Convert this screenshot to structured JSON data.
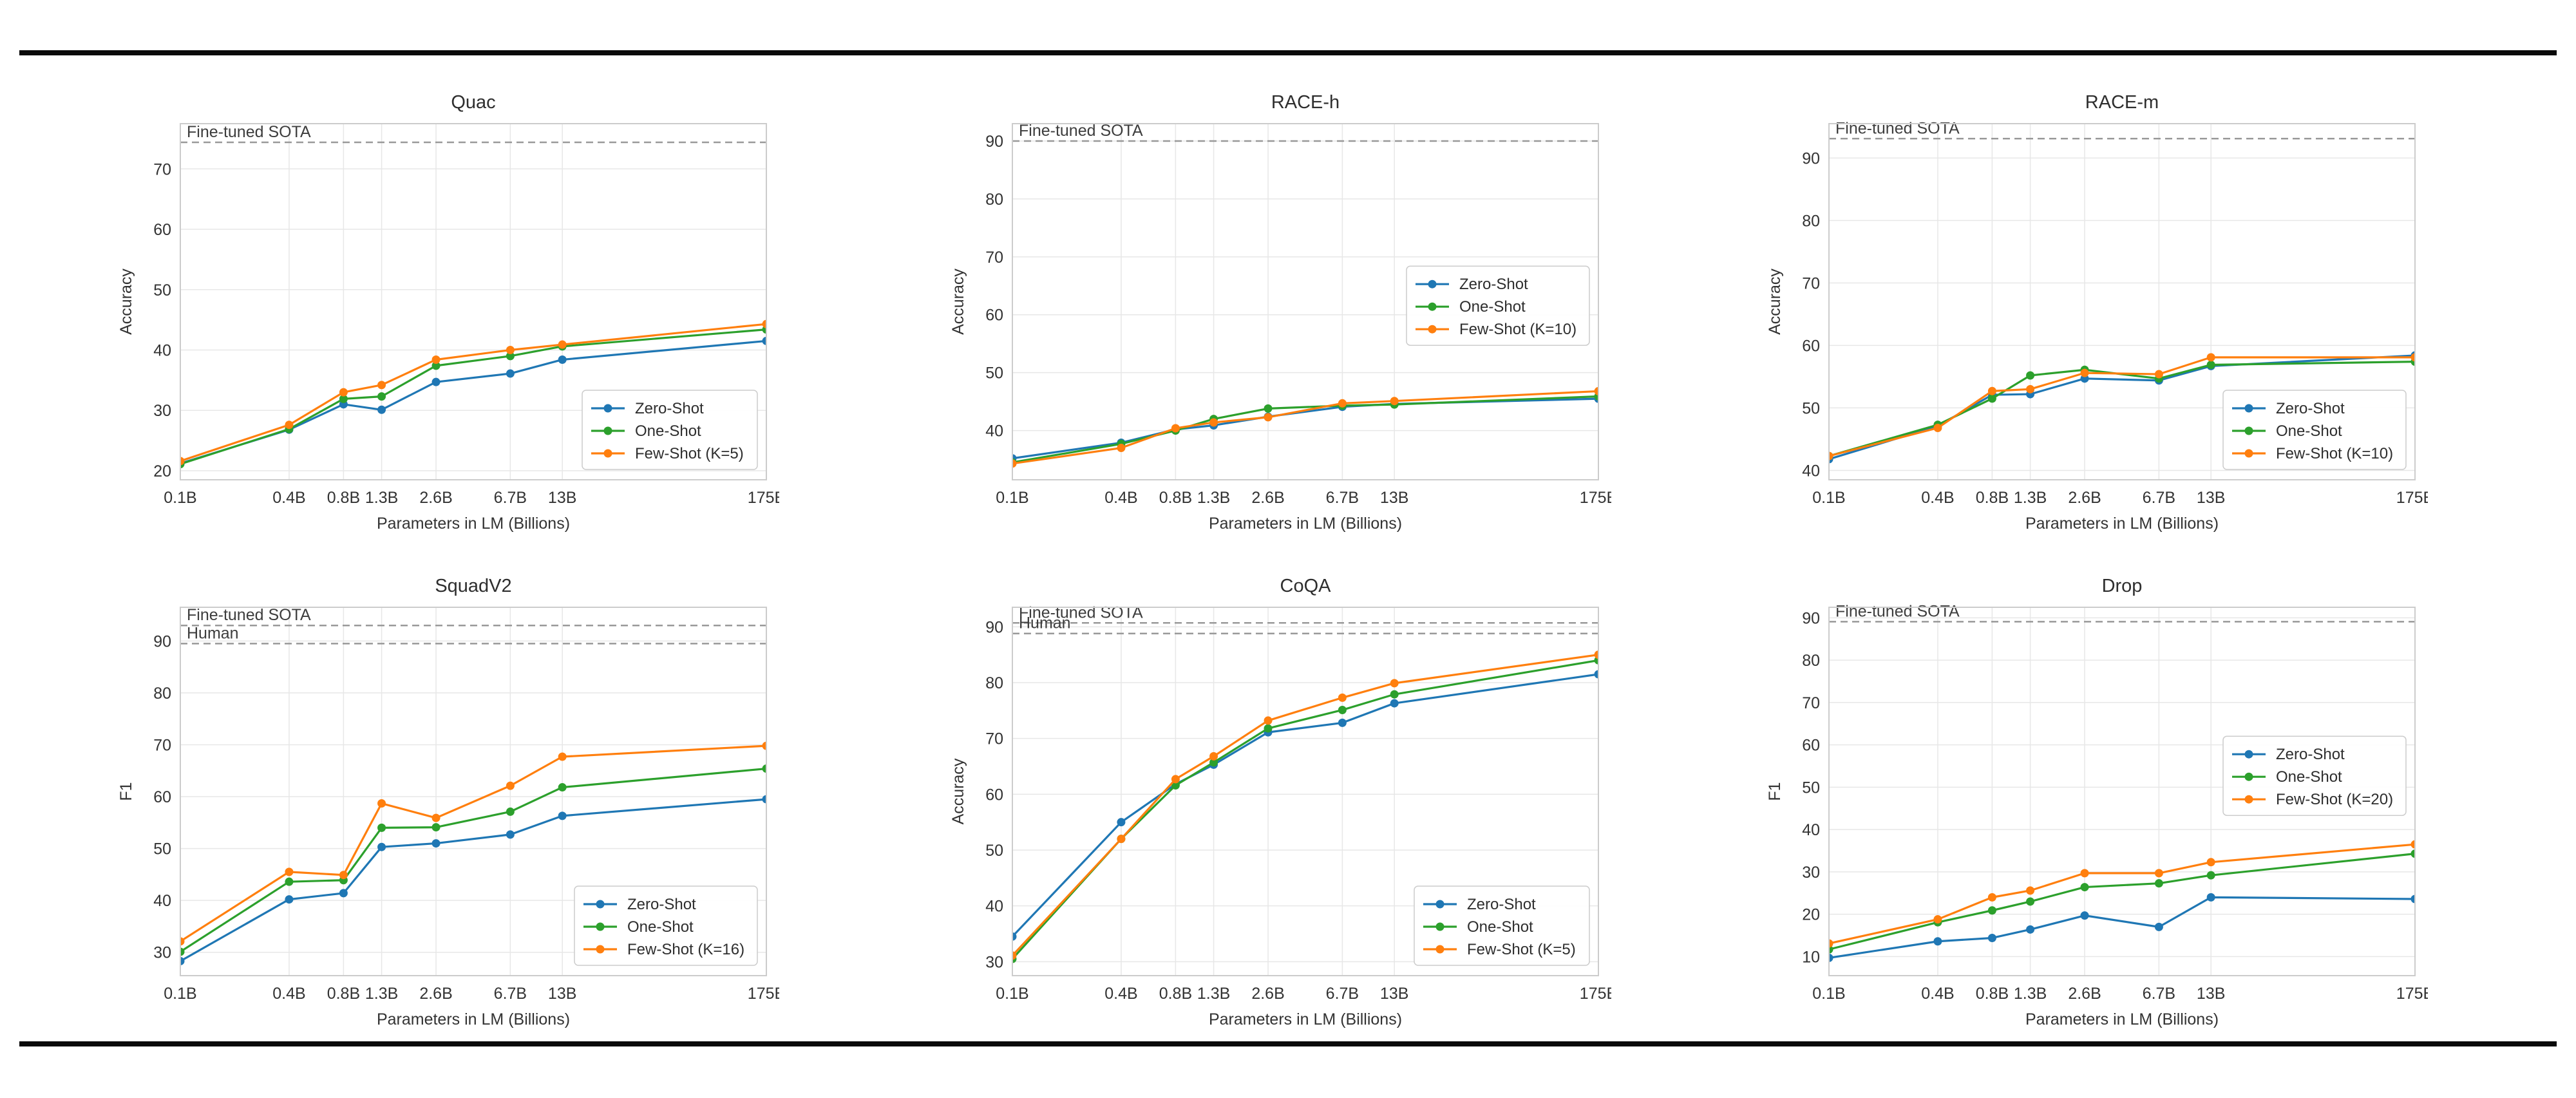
{
  "figure": {
    "x_axis_label": "Parameters in LM (Billions)",
    "x_tick_labels": [
      "0.1B",
      "0.4B",
      "0.8B",
      "1.3B",
      "2.6B",
      "6.7B",
      "13B",
      "175B"
    ],
    "x_values": [
      0.1,
      0.4,
      0.8,
      1.3,
      2.6,
      6.7,
      13,
      175
    ],
    "colors": {
      "zero_shot": "#1f77b4",
      "one_shot": "#2ca02c",
      "few_shot": "#ff7f0e",
      "reference_line": "#999999",
      "grid": "#e7e7e7",
      "spine": "#cccccc",
      "rule": "#0a0a0a"
    }
  },
  "chart_data": [
    {
      "type": "line",
      "title": "Quac",
      "xlabel": "Parameters in LM (Billions)",
      "ylabel": "Accuracy",
      "x_scale": "log",
      "x": [
        0.1,
        0.4,
        0.8,
        1.3,
        2.6,
        6.7,
        13,
        175
      ],
      "x_categories": [
        "0.1B",
        "0.4B",
        "0.8B",
        "1.3B",
        "2.6B",
        "6.7B",
        "13B",
        "175B"
      ],
      "ylim": [
        18.5,
        77.5
      ],
      "yticks": [
        20,
        30,
        40,
        50,
        60,
        70
      ],
      "grid": true,
      "reference_lines": [
        {
          "label": "Fine-tuned SOTA",
          "value": 74.4
        }
      ],
      "series": [
        {
          "name": "Zero-Shot",
          "color": "#1f77b4",
          "values": [
            21.2,
            26.8,
            31.0,
            30.1,
            34.7,
            36.1,
            38.4,
            41.5
          ]
        },
        {
          "name": "One-Shot",
          "color": "#2ca02c",
          "values": [
            21.1,
            26.9,
            31.9,
            32.3,
            37.4,
            39.0,
            40.6,
            43.4
          ]
        },
        {
          "name": "Few-Shot (K=5)",
          "color": "#ff7f0e",
          "values": [
            21.6,
            27.6,
            33.0,
            34.2,
            38.4,
            40.0,
            40.9,
            44.3
          ]
        }
      ],
      "legend": {
        "position": "lower-right"
      }
    },
    {
      "type": "line",
      "title": "RACE-h",
      "xlabel": "Parameters in LM (Billions)",
      "ylabel": "Accuracy",
      "x_scale": "log",
      "x": [
        0.1,
        0.4,
        0.8,
        1.3,
        2.6,
        6.7,
        13,
        175
      ],
      "x_categories": [
        "0.1B",
        "0.4B",
        "0.8B",
        "1.3B",
        "2.6B",
        "6.7B",
        "13B",
        "175B"
      ],
      "ylim": [
        31.5,
        93.0
      ],
      "yticks": [
        40,
        50,
        60,
        70,
        80,
        90
      ],
      "grid": true,
      "reference_lines": [
        {
          "label": "Fine-tuned SOTA",
          "value": 90.0
        }
      ],
      "series": [
        {
          "name": "Zero-Shot",
          "color": "#1f77b4",
          "values": [
            35.2,
            37.9,
            40.2,
            40.9,
            42.4,
            44.1,
            44.6,
            45.5
          ]
        },
        {
          "name": "One-Shot",
          "color": "#2ca02c",
          "values": [
            34.5,
            37.7,
            40.0,
            42.0,
            43.8,
            44.3,
            44.5,
            45.9
          ]
        },
        {
          "name": "Few-Shot (K=10)",
          "color": "#ff7f0e",
          "values": [
            34.3,
            37.0,
            40.4,
            41.4,
            42.3,
            44.7,
            45.1,
            46.8
          ]
        }
      ],
      "legend": {
        "position": "center-right",
        "y_fraction": 0.4
      }
    },
    {
      "type": "line",
      "title": "RACE-m",
      "xlabel": "Parameters in LM (Billions)",
      "ylabel": "Accuracy",
      "x_scale": "log",
      "x": [
        0.1,
        0.4,
        0.8,
        1.3,
        2.6,
        6.7,
        13,
        175
      ],
      "x_categories": [
        "0.1B",
        "0.4B",
        "0.8B",
        "1.3B",
        "2.6B",
        "6.7B",
        "13B",
        "175B"
      ],
      "ylim": [
        38.5,
        95.5
      ],
      "yticks": [
        40,
        50,
        60,
        70,
        80,
        90
      ],
      "grid": true,
      "reference_lines": [
        {
          "label": "Fine-tuned SOTA",
          "value": 93.1
        }
      ],
      "series": [
        {
          "name": "Zero-Shot",
          "color": "#1f77b4",
          "values": [
            41.8,
            47.1,
            52.1,
            52.2,
            54.7,
            54.4,
            56.7,
            58.4
          ]
        },
        {
          "name": "One-Shot",
          "color": "#2ca02c",
          "values": [
            42.3,
            47.3,
            51.5,
            55.2,
            56.1,
            54.7,
            56.9,
            57.4
          ]
        },
        {
          "name": "Few-Shot (K=10)",
          "color": "#ff7f0e",
          "values": [
            42.3,
            46.8,
            52.7,
            53.0,
            55.6,
            55.4,
            58.1,
            58.1
          ]
        }
      ],
      "legend": {
        "position": "lower-right"
      }
    },
    {
      "type": "line",
      "title": "SquadV2",
      "xlabel": "Parameters in LM (Billions)",
      "ylabel": "F1",
      "x_scale": "log",
      "x": [
        0.1,
        0.4,
        0.8,
        1.3,
        2.6,
        6.7,
        13,
        175
      ],
      "x_categories": [
        "0.1B",
        "0.4B",
        "0.8B",
        "1.3B",
        "2.6B",
        "6.7B",
        "13B",
        "175B"
      ],
      "ylim": [
        25.5,
        96.5
      ],
      "yticks": [
        30,
        40,
        50,
        60,
        70,
        80,
        90
      ],
      "grid": true,
      "reference_lines": [
        {
          "label": "Fine-tuned SOTA",
          "value": 93.0
        },
        {
          "label": "Human",
          "value": 89.5
        }
      ],
      "series": [
        {
          "name": "Zero-Shot",
          "color": "#1f77b4",
          "values": [
            28.3,
            40.2,
            41.4,
            50.3,
            51.0,
            52.7,
            56.3,
            59.5
          ]
        },
        {
          "name": "One-Shot",
          "color": "#2ca02c",
          "values": [
            30.1,
            43.6,
            43.9,
            54.0,
            54.1,
            57.1,
            61.8,
            65.4
          ]
        },
        {
          "name": "Few-Shot (K=16)",
          "color": "#ff7f0e",
          "values": [
            32.1,
            45.5,
            44.9,
            58.7,
            55.9,
            62.1,
            67.7,
            69.8
          ]
        }
      ],
      "legend": {
        "position": "lower-right"
      }
    },
    {
      "type": "line",
      "title": "CoQA",
      "xlabel": "Parameters in LM (Billions)",
      "ylabel": "Accuracy",
      "x_scale": "log",
      "x": [
        0.1,
        0.4,
        0.8,
        1.3,
        2.6,
        6.7,
        13,
        175
      ],
      "x_categories": [
        "0.1B",
        "0.4B",
        "0.8B",
        "1.3B",
        "2.6B",
        "6.7B",
        "13B",
        "175B"
      ],
      "ylim": [
        27.5,
        93.5
      ],
      "yticks": [
        30,
        40,
        50,
        60,
        70,
        80,
        90
      ],
      "grid": true,
      "reference_lines": [
        {
          "label": "Fine-tuned SOTA",
          "value": 90.7
        },
        {
          "label": "Human",
          "value": 88.8
        }
      ],
      "series": [
        {
          "name": "Zero-Shot",
          "color": "#1f77b4",
          "values": [
            34.5,
            55.0,
            61.8,
            65.3,
            71.1,
            72.8,
            76.3,
            81.5
          ]
        },
        {
          "name": "One-Shot",
          "color": "#2ca02c",
          "values": [
            30.5,
            52.0,
            61.6,
            65.7,
            71.8,
            75.1,
            77.9,
            84.0
          ]
        },
        {
          "name": "Few-Shot (K=5)",
          "color": "#ff7f0e",
          "values": [
            31.1,
            52.0,
            62.7,
            66.8,
            73.2,
            77.3,
            79.9,
            85.0
          ]
        }
      ],
      "legend": {
        "position": "lower-right"
      }
    },
    {
      "type": "line",
      "title": "Drop",
      "xlabel": "Parameters in LM (Billions)",
      "ylabel": "F1",
      "x_scale": "log",
      "x": [
        0.1,
        0.4,
        0.8,
        1.3,
        2.6,
        6.7,
        13,
        175
      ],
      "x_categories": [
        "0.1B",
        "0.4B",
        "0.8B",
        "1.3B",
        "2.6B",
        "6.7B",
        "13B",
        "175B"
      ],
      "ylim": [
        5.5,
        92.5
      ],
      "yticks": [
        10,
        20,
        30,
        40,
        50,
        60,
        70,
        80,
        90
      ],
      "grid": true,
      "reference_lines": [
        {
          "label": "Fine-tuned SOTA",
          "value": 89.1
        }
      ],
      "series": [
        {
          "name": "Zero-Shot",
          "color": "#1f77b4",
          "values": [
            9.7,
            13.6,
            14.4,
            16.4,
            19.7,
            17.0,
            24.0,
            23.6
          ]
        },
        {
          "name": "One-Shot",
          "color": "#2ca02c",
          "values": [
            11.7,
            18.1,
            20.9,
            23.0,
            26.4,
            27.3,
            29.2,
            34.3
          ]
        },
        {
          "name": "Few-Shot (K=20)",
          "color": "#ff7f0e",
          "values": [
            13.1,
            18.8,
            24.0,
            25.6,
            29.7,
            29.7,
            32.3,
            36.5
          ]
        }
      ],
      "legend": {
        "position": "center-right",
        "y_fraction": 0.35
      }
    }
  ]
}
